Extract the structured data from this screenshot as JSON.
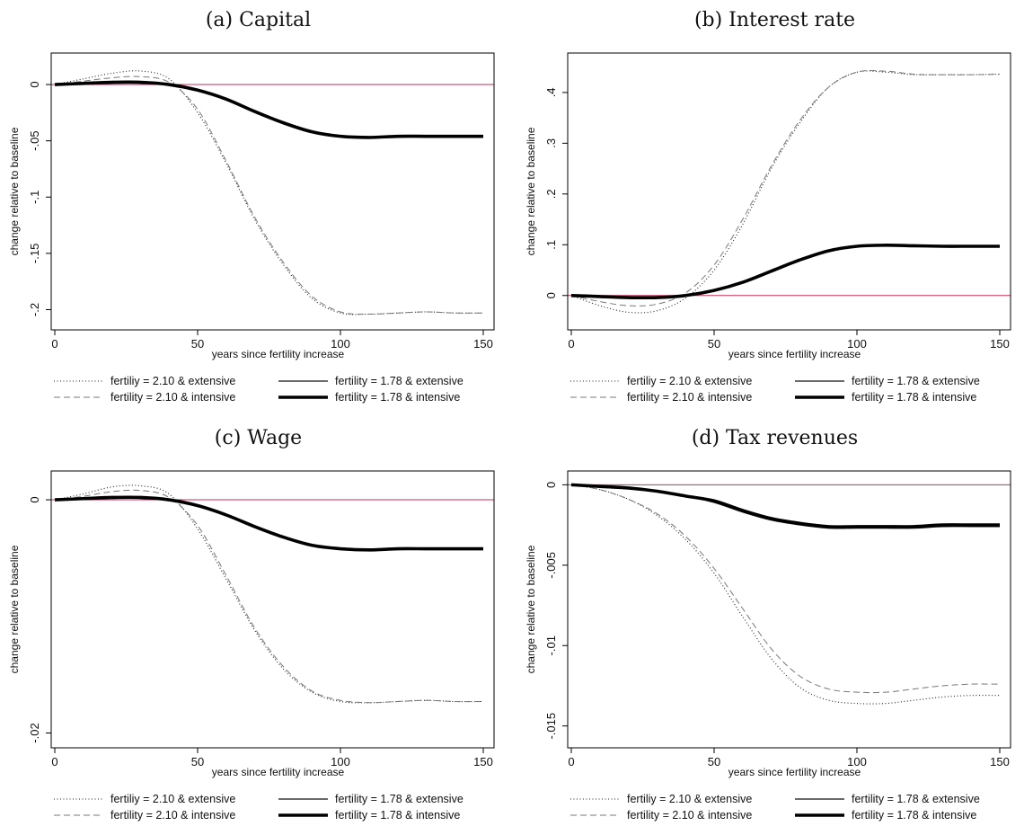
{
  "chart_data": [
    {
      "type": "line",
      "title": "(a) Capital",
      "xlabel": "years since fertility increase",
      "ylabel": "change relative to baseline",
      "xlim": [
        0,
        150
      ],
      "ylim": [
        -0.21,
        0.02
      ],
      "x_ticks": [
        {
          "v": 0,
          "label": "0"
        },
        {
          "v": 50,
          "label": "50"
        },
        {
          "v": 100,
          "label": "100"
        },
        {
          "v": 150,
          "label": "150"
        }
      ],
      "y_ticks": [
        {
          "v": 0,
          "label": "0"
        },
        {
          "v": -0.05,
          "label": "-.05"
        },
        {
          "v": -0.1,
          "label": "-.1"
        },
        {
          "v": -0.15,
          "label": "-.15"
        },
        {
          "v": -0.2,
          "label": "-.2"
        }
      ],
      "reference_line": {
        "y": 0,
        "color": "#c0305a"
      },
      "series": [
        {
          "name": "fertiliy = 2.10 & extensive",
          "style": "dotted",
          "x": [
            0,
            10,
            20,
            30,
            40,
            50,
            60,
            70,
            80,
            90,
            100,
            110,
            120,
            130,
            140,
            150
          ],
          "y": [
            0,
            0.005,
            0.01,
            0.012,
            0.005,
            -0.025,
            -0.07,
            -0.12,
            -0.16,
            -0.19,
            -0.203,
            -0.204,
            -0.203,
            -0.202,
            -0.203,
            -0.203
          ]
        },
        {
          "name": "fertility = 2.10 & intensive",
          "style": "dashed",
          "x": [
            0,
            10,
            20,
            30,
            40,
            50,
            60,
            70,
            80,
            90,
            100,
            110,
            120,
            130,
            140,
            150
          ],
          "y": [
            0,
            0.003,
            0.006,
            0.007,
            0.002,
            -0.022,
            -0.068,
            -0.118,
            -0.158,
            -0.188,
            -0.202,
            -0.204,
            -0.203,
            -0.202,
            -0.203,
            -0.203
          ]
        },
        {
          "name": "fertility = 1.78 & extensive",
          "style": "solid",
          "x": [
            0,
            10,
            20,
            30,
            40,
            50,
            60,
            70,
            80,
            90,
            100,
            110,
            120,
            130,
            140,
            150
          ],
          "y": [
            0,
            0.001,
            0.002,
            0.002,
            0.0,
            -0.005,
            -0.013,
            -0.024,
            -0.034,
            -0.042,
            -0.046,
            -0.047,
            -0.046,
            -0.046,
            -0.046,
            -0.046
          ]
        },
        {
          "name": "fertility = 1.78 & intensive",
          "style": "thick",
          "x": [
            0,
            10,
            20,
            30,
            40,
            50,
            60,
            70,
            80,
            90,
            100,
            110,
            120,
            130,
            140,
            150
          ],
          "y": [
            0,
            0.001,
            0.002,
            0.002,
            0.0,
            -0.005,
            -0.013,
            -0.024,
            -0.034,
            -0.042,
            -0.046,
            -0.047,
            -0.046,
            -0.046,
            -0.046,
            -0.046
          ]
        }
      ],
      "legend": "bottom"
    },
    {
      "type": "line",
      "title": "(b) Interest rate",
      "xlabel": "years since fertility increase",
      "ylabel": "change relative to baseline",
      "xlim": [
        0,
        150
      ],
      "ylim": [
        -0.05,
        0.46
      ],
      "x_ticks": [
        {
          "v": 0,
          "label": "0"
        },
        {
          "v": 50,
          "label": "50"
        },
        {
          "v": 100,
          "label": "100"
        },
        {
          "v": 150,
          "label": "150"
        }
      ],
      "y_ticks": [
        {
          "v": 0,
          "label": "0"
        },
        {
          "v": 0.1,
          "label": ".1"
        },
        {
          "v": 0.2,
          "label": ".2"
        },
        {
          "v": 0.3,
          "label": ".3"
        },
        {
          "v": 0.4,
          "label": ".4"
        }
      ],
      "reference_line": {
        "y": 0,
        "color": "#c0305a"
      },
      "series": [
        {
          "name": "fertiliy = 2.10 & extensive",
          "style": "dotted",
          "x": [
            0,
            10,
            20,
            30,
            40,
            50,
            60,
            70,
            80,
            90,
            100,
            110,
            120,
            130,
            140,
            150
          ],
          "y": [
            0,
            -0.02,
            -0.033,
            -0.03,
            -0.005,
            0.05,
            0.14,
            0.25,
            0.34,
            0.41,
            0.44,
            0.44,
            0.435,
            0.435,
            0.435,
            0.436
          ]
        },
        {
          "name": "fertility = 2.10 & intensive",
          "style": "dashed",
          "x": [
            0,
            10,
            20,
            30,
            40,
            50,
            60,
            70,
            80,
            90,
            100,
            110,
            120,
            130,
            140,
            150
          ],
          "y": [
            0,
            -0.012,
            -0.02,
            -0.017,
            0.005,
            0.06,
            0.15,
            0.255,
            0.345,
            0.41,
            0.44,
            0.442,
            0.436,
            0.435,
            0.435,
            0.436
          ]
        },
        {
          "name": "fertility = 1.78 & extensive",
          "style": "solid",
          "x": [
            0,
            10,
            20,
            30,
            40,
            50,
            60,
            70,
            80,
            90,
            100,
            110,
            120,
            130,
            140,
            150
          ],
          "y": [
            0,
            -0.002,
            -0.004,
            -0.004,
            0.0,
            0.01,
            0.026,
            0.048,
            0.07,
            0.088,
            0.097,
            0.099,
            0.098,
            0.097,
            0.097,
            0.097
          ]
        },
        {
          "name": "fertility = 1.78 & intensive",
          "style": "thick",
          "x": [
            0,
            10,
            20,
            30,
            40,
            50,
            60,
            70,
            80,
            90,
            100,
            110,
            120,
            130,
            140,
            150
          ],
          "y": [
            0,
            -0.002,
            -0.004,
            -0.004,
            0.0,
            0.01,
            0.026,
            0.048,
            0.07,
            0.088,
            0.097,
            0.099,
            0.098,
            0.097,
            0.097,
            0.097
          ]
        }
      ],
      "legend": "bottom"
    },
    {
      "type": "line",
      "title": "(c) Wage",
      "xlabel": "years since fertility increase",
      "ylabel": "change relative to baseline",
      "xlim": [
        0,
        150
      ],
      "ylim": [
        -0.0205,
        0.0017
      ],
      "x_ticks": [
        {
          "v": 0,
          "label": "0"
        },
        {
          "v": 50,
          "label": "50"
        },
        {
          "v": 100,
          "label": "100"
        },
        {
          "v": 150,
          "label": "150"
        }
      ],
      "y_ticks": [
        {
          "v": 0,
          "label": "0"
        },
        {
          "v": -0.02,
          "label": "-.02"
        }
      ],
      "reference_line": {
        "y": 0,
        "color": "#c0305a"
      },
      "series": [
        {
          "name": "fertiliy = 2.10 & extensive",
          "style": "dotted",
          "x": [
            0,
            10,
            20,
            30,
            40,
            50,
            60,
            70,
            80,
            90,
            100,
            110,
            120,
            130,
            140,
            150
          ],
          "y": [
            0,
            0.0005,
            0.0011,
            0.0012,
            0.0005,
            -0.0025,
            -0.0068,
            -0.0112,
            -0.0145,
            -0.0165,
            -0.0173,
            -0.0174,
            -0.0173,
            -0.0172,
            -0.0173,
            -0.0173
          ]
        },
        {
          "name": "fertility = 2.10 & intensive",
          "style": "dashed",
          "x": [
            0,
            10,
            20,
            30,
            40,
            50,
            60,
            70,
            80,
            90,
            100,
            110,
            120,
            130,
            140,
            150
          ],
          "y": [
            0,
            0.0003,
            0.0007,
            0.0008,
            0.0002,
            -0.0022,
            -0.0065,
            -0.011,
            -0.0143,
            -0.0164,
            -0.0172,
            -0.0174,
            -0.0173,
            -0.0172,
            -0.0173,
            -0.0173
          ]
        },
        {
          "name": "fertility = 1.78 & extensive",
          "style": "solid",
          "x": [
            0,
            10,
            20,
            30,
            40,
            50,
            60,
            70,
            80,
            90,
            100,
            110,
            120,
            130,
            140,
            150
          ],
          "y": [
            0,
            0.0001,
            0.0002,
            0.0002,
            0.0,
            -0.0005,
            -0.0013,
            -0.0023,
            -0.0032,
            -0.0039,
            -0.0042,
            -0.0043,
            -0.0042,
            -0.0042,
            -0.0042,
            -0.0042
          ]
        },
        {
          "name": "fertility = 1.78 & intensive",
          "style": "thick",
          "x": [
            0,
            10,
            20,
            30,
            40,
            50,
            60,
            70,
            80,
            90,
            100,
            110,
            120,
            130,
            140,
            150
          ],
          "y": [
            0,
            0.0001,
            0.0002,
            0.0002,
            0.0,
            -0.0005,
            -0.0013,
            -0.0023,
            -0.0032,
            -0.0039,
            -0.0042,
            -0.0043,
            -0.0042,
            -0.0042,
            -0.0042,
            -0.0042
          ]
        }
      ],
      "legend": "bottom"
    },
    {
      "type": "line",
      "title": "(d) Tax revenues",
      "xlabel": "years since fertility increase",
      "ylabel": "change relative to baseline",
      "xlim": [
        0,
        150
      ],
      "ylim": [
        -0.0158,
        0.0003
      ],
      "x_ticks": [
        {
          "v": 0,
          "label": "0"
        },
        {
          "v": 50,
          "label": "50"
        },
        {
          "v": 100,
          "label": "100"
        },
        {
          "v": 150,
          "label": "150"
        }
      ],
      "y_ticks": [
        {
          "v": 0,
          "label": "0"
        },
        {
          "v": -0.005,
          "label": "-.005"
        },
        {
          "v": -0.01,
          "label": "-.01"
        },
        {
          "v": -0.015,
          "label": "-.015"
        }
      ],
      "reference_line": {
        "y": 0,
        "color": "#c0305a"
      },
      "series": [
        {
          "name": "fertiliy = 2.10 & extensive",
          "style": "dotted",
          "x": [
            0,
            10,
            20,
            30,
            40,
            50,
            60,
            70,
            80,
            90,
            100,
            110,
            120,
            130,
            140,
            150
          ],
          "y": [
            0,
            -0.0003,
            -0.0009,
            -0.0019,
            -0.0034,
            -0.0055,
            -0.0082,
            -0.0108,
            -0.0126,
            -0.0134,
            -0.0136,
            -0.0136,
            -0.0134,
            -0.0132,
            -0.0131,
            -0.0131
          ]
        },
        {
          "name": "fertility = 2.10 & intensive",
          "style": "dashed",
          "x": [
            0,
            10,
            20,
            30,
            40,
            50,
            60,
            70,
            80,
            90,
            100,
            110,
            120,
            130,
            140,
            150
          ],
          "y": [
            0,
            -0.0003,
            -0.0009,
            -0.0018,
            -0.0032,
            -0.0052,
            -0.0077,
            -0.0102,
            -0.0119,
            -0.0127,
            -0.0129,
            -0.0129,
            -0.0127,
            -0.0125,
            -0.0124,
            -0.0124
          ]
        },
        {
          "name": "fertility = 1.78 & extensive",
          "style": "solid",
          "x": [
            0,
            10,
            20,
            30,
            40,
            50,
            60,
            70,
            80,
            90,
            100,
            110,
            120,
            130,
            140,
            150
          ],
          "y": [
            0,
            -0.0001,
            -0.0002,
            -0.0004,
            -0.0007,
            -0.0011,
            -0.0017,
            -0.0022,
            -0.0025,
            -0.0027,
            -0.0027,
            -0.0027,
            -0.0027,
            -0.0026,
            -0.0026,
            -0.0026
          ]
        },
        {
          "name": "fertility = 1.78 & intensive",
          "style": "thick",
          "x": [
            0,
            10,
            20,
            30,
            40,
            50,
            60,
            70,
            80,
            90,
            100,
            110,
            120,
            130,
            140,
            150
          ],
          "y": [
            0,
            -0.0001,
            -0.0002,
            -0.0004,
            -0.0007,
            -0.001,
            -0.0016,
            -0.0021,
            -0.0024,
            -0.0026,
            -0.0026,
            -0.0026,
            -0.0026,
            -0.0025,
            -0.0025,
            -0.0025
          ]
        }
      ],
      "legend": "bottom"
    }
  ]
}
